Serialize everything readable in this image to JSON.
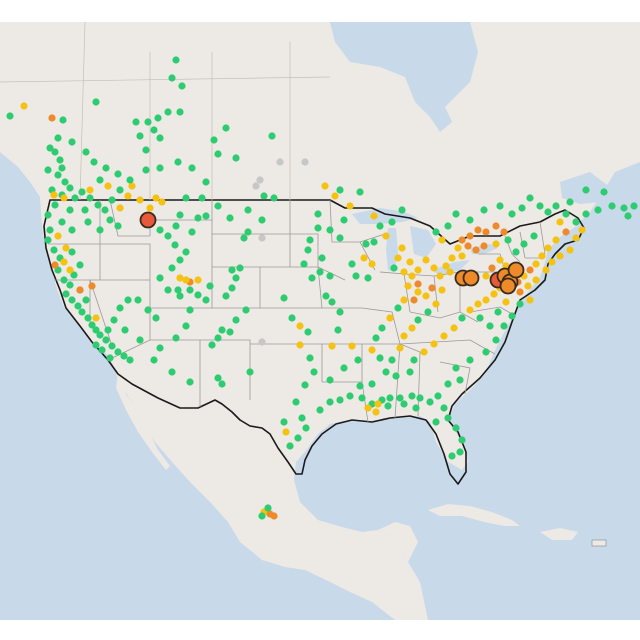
{
  "map": {
    "colors": {
      "water": "#c8d9ea",
      "land": "#ede9e4",
      "land_alt": "#e8e3dd",
      "border_country": "#1a1a1a",
      "border_state": "#9a9a9a",
      "good": "#2ecc71",
      "moderate": "#f5c211",
      "usg": "#ee8a2a",
      "unhealthy": "#e8583a",
      "no_data": "#c7c7c7",
      "marker_outline": "#3a2a1a"
    },
    "categories": [
      "good",
      "moderate",
      "usg",
      "unhealthy",
      "no_data"
    ],
    "note": ""
  }
}
